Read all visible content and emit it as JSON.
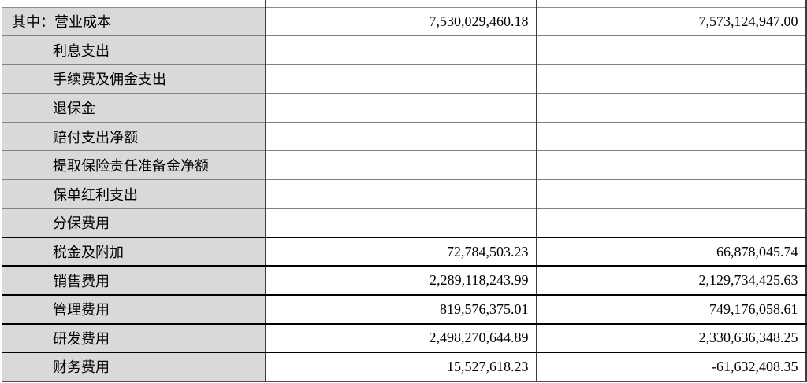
{
  "table": {
    "description_labels": {
      "prefix": "其中："
    },
    "rows": [
      {
        "label": "其中：营业成本",
        "current": "7,530,029,460.18",
        "prior": "7,573,124,947.00"
      },
      {
        "label": "利息支出",
        "current": "",
        "prior": ""
      },
      {
        "label": "手续费及佣金支出",
        "current": "",
        "prior": ""
      },
      {
        "label": "退保金",
        "current": "",
        "prior": ""
      },
      {
        "label": "赔付支出净额",
        "current": "",
        "prior": ""
      },
      {
        "label": "提取保险责任准备金净额",
        "current": "",
        "prior": ""
      },
      {
        "label": "保单红利支出",
        "current": "",
        "prior": ""
      },
      {
        "label": "分保费用",
        "current": "",
        "prior": ""
      },
      {
        "label": "税金及附加",
        "current": "72,784,503.23",
        "prior": "66,878,045.74"
      },
      {
        "label": "销售费用",
        "current": "2,289,118,243.99",
        "prior": "2,129,734,425.63"
      },
      {
        "label": "管理费用",
        "current": "819,576,375.01",
        "prior": "749,176,058.61"
      },
      {
        "label": "研发费用",
        "current": "2,498,270,644.89",
        "prior": "2,330,636,348.25"
      },
      {
        "label": "财务费用",
        "current": "15,527,618.23",
        "prior": "-61,632,408.35"
      }
    ],
    "colors": {
      "label_cell_bg": "#d9d9d9",
      "light_rule": "#828282",
      "dark_rule": "#000000",
      "vertical_rule": "#3c3c3c"
    }
  }
}
